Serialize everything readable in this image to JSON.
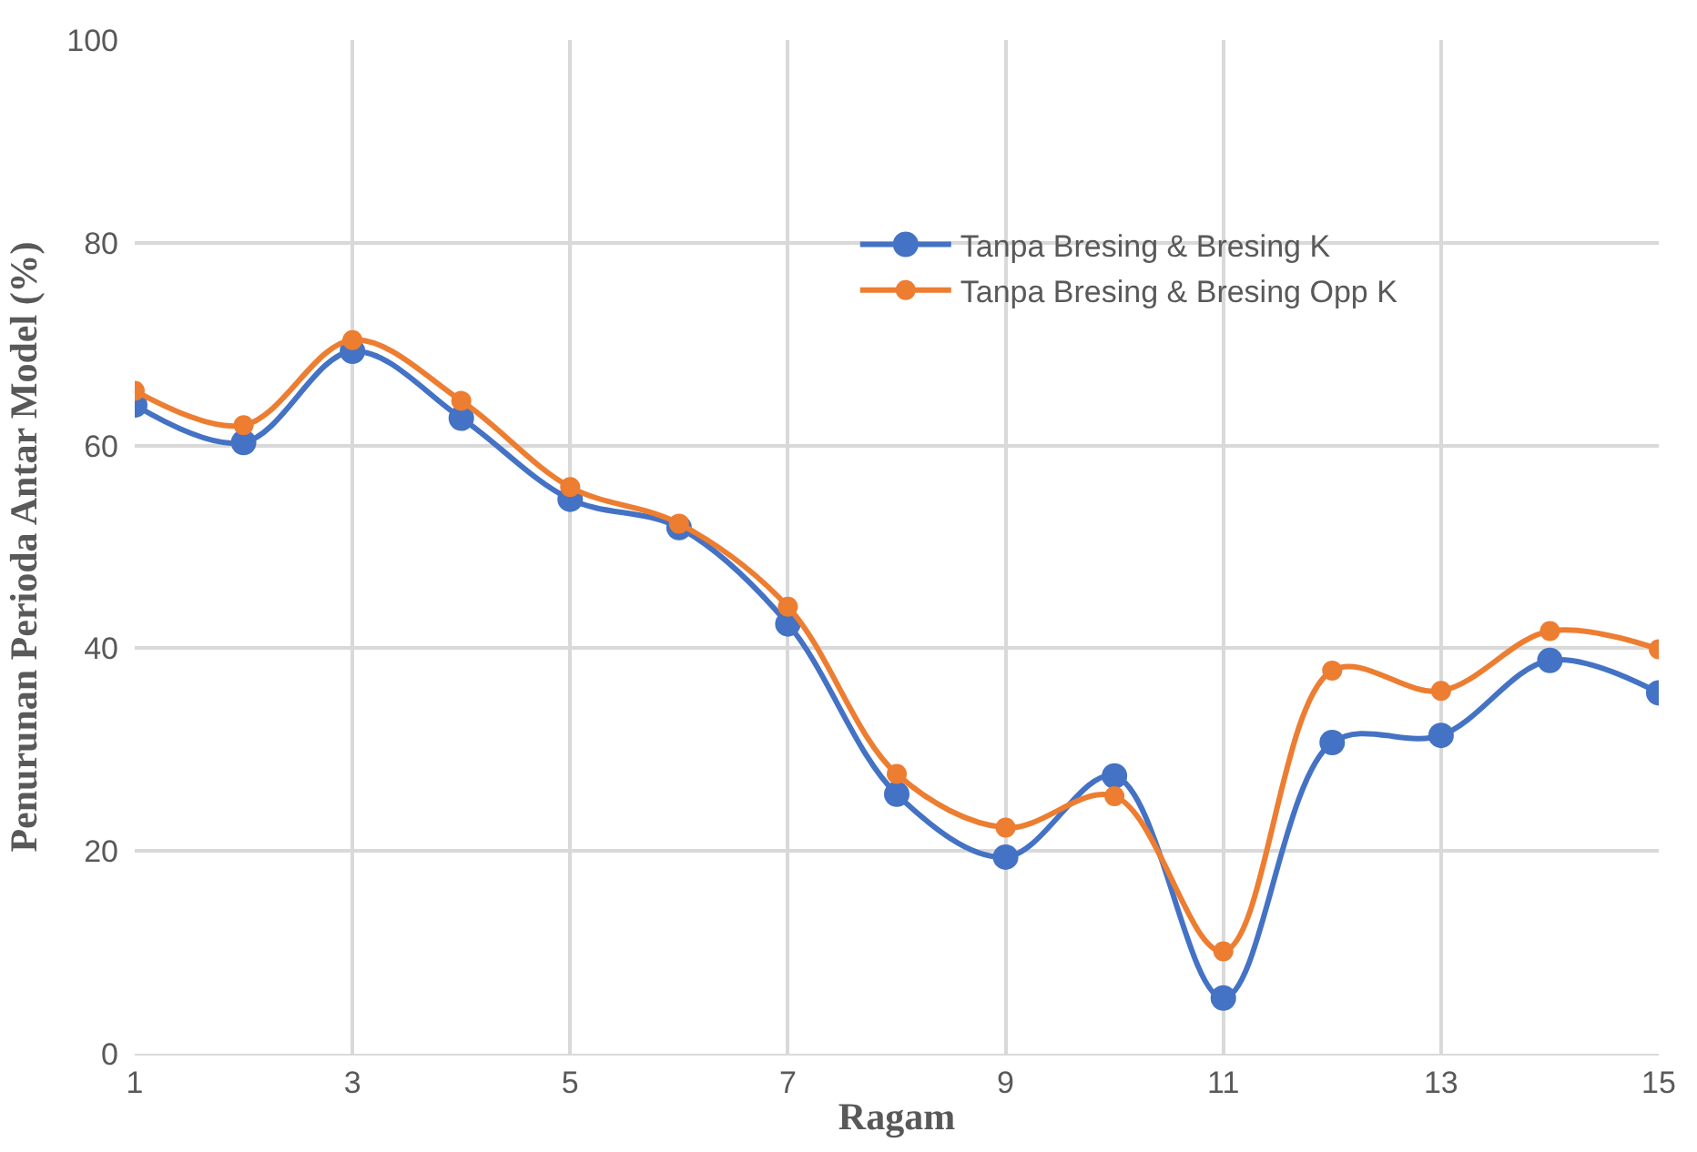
{
  "chart_data": {
    "type": "line",
    "xlabel": "Ragam",
    "ylabel": "Penurunan Perioda Antar Model (%)",
    "x": [
      1,
      2,
      3,
      4,
      5,
      6,
      7,
      8,
      9,
      10,
      11,
      12,
      13,
      14,
      15
    ],
    "series": [
      {
        "name": "Tanpa Bresing & Bresing K",
        "color": "#4472c4",
        "values": [
          64.0,
          60.3,
          69.3,
          62.7,
          54.7,
          51.9,
          42.4,
          25.6,
          19.4,
          27.4,
          5.5,
          30.7,
          31.4,
          38.8,
          35.6
        ]
      },
      {
        "name": "Tanpa Bresing & Bresing Opp K",
        "color": "#ed7d31",
        "values": [
          65.4,
          62.0,
          70.4,
          64.4,
          55.9,
          52.3,
          44.1,
          27.6,
          22.3,
          25.4,
          10.1,
          37.8,
          35.8,
          41.7,
          39.9
        ]
      }
    ],
    "xlim": [
      1,
      15
    ],
    "xticks": [
      1,
      3,
      5,
      7,
      9,
      11,
      13,
      15
    ],
    "ylim": [
      0,
      100
    ],
    "yticks": [
      0,
      20,
      40,
      60,
      80,
      100
    ],
    "grid": true,
    "legend": "top right",
    "marker": "circle",
    "line_style": "solid"
  }
}
